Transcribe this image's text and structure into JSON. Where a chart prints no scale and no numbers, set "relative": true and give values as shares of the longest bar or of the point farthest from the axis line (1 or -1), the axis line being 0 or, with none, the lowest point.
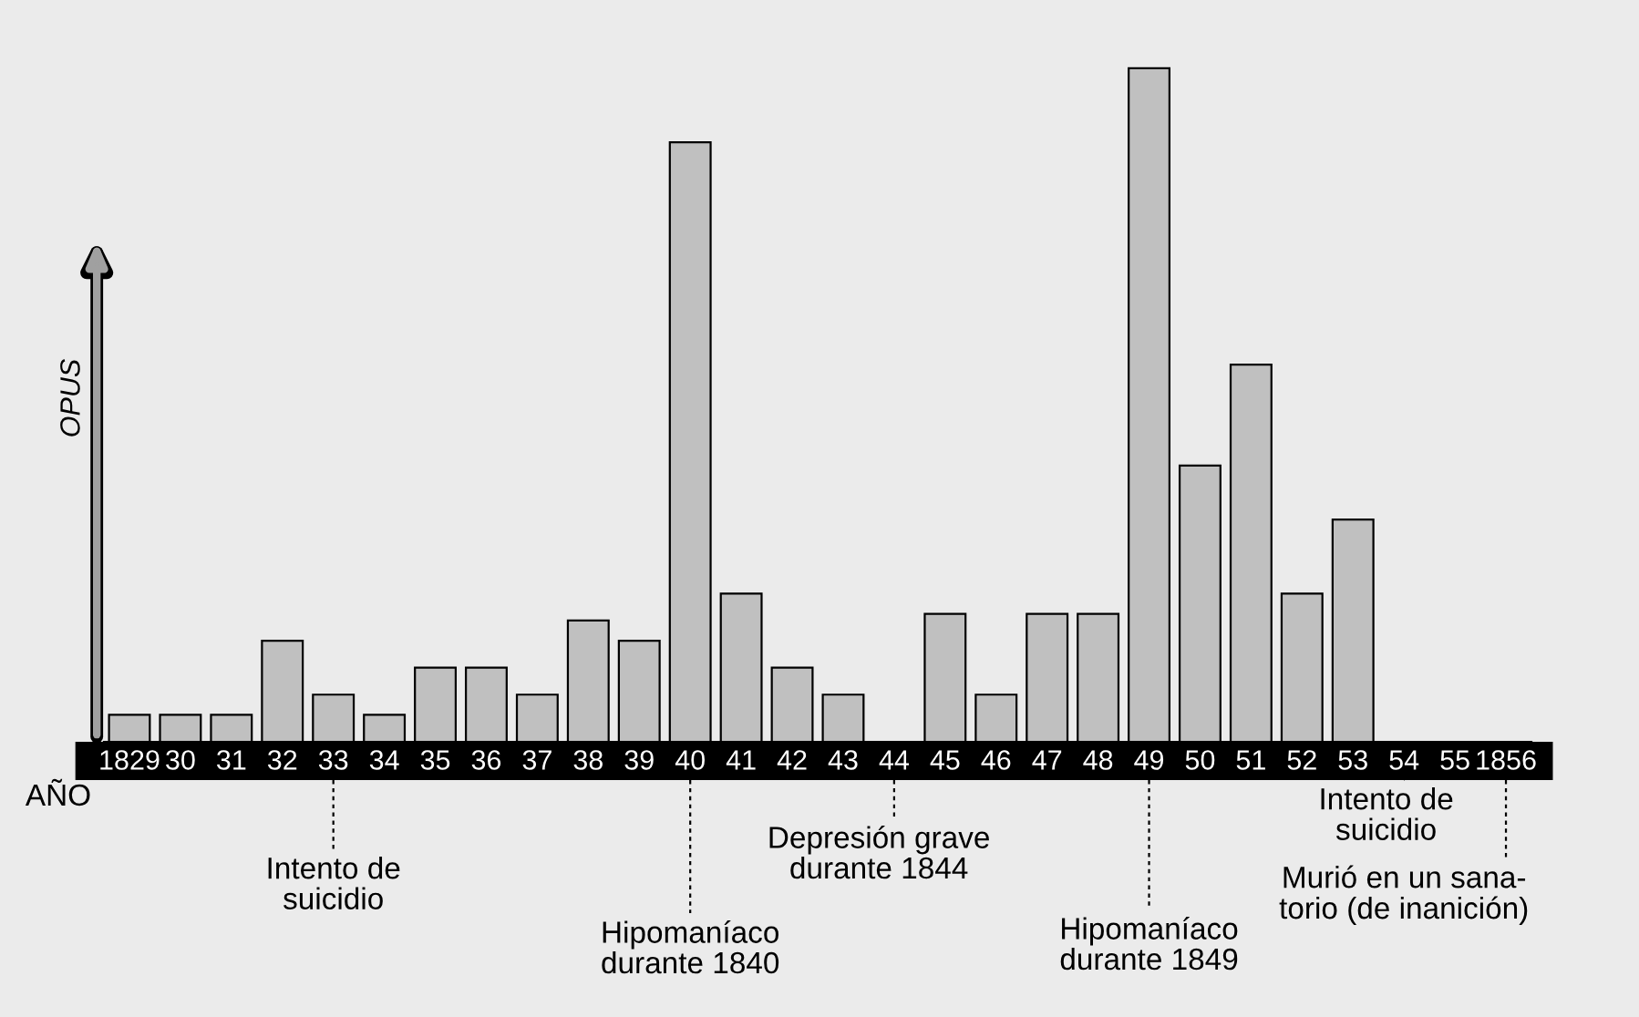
{
  "chart_data": {
    "type": "bar",
    "relative": true,
    "ylabel": "OPUS",
    "xlabel": "AÑO",
    "categories": [
      "1829",
      "30",
      "31",
      "32",
      "33",
      "34",
      "35",
      "36",
      "37",
      "38",
      "39",
      "40",
      "41",
      "42",
      "43",
      "44",
      "45",
      "46",
      "47",
      "48",
      "49",
      "50",
      "51",
      "52",
      "53",
      "54",
      "55",
      "1856"
    ],
    "values": [
      0.04,
      0.04,
      0.04,
      0.15,
      0.07,
      0.04,
      0.11,
      0.11,
      0.07,
      0.18,
      0.15,
      0.89,
      0.22,
      0.11,
      0.07,
      0,
      0.19,
      0.07,
      0.19,
      0.19,
      1,
      0.41,
      0.56,
      0.22,
      0.33,
      0,
      0,
      0
    ],
    "color": "#c0c0c0",
    "annotations": [
      "Intento de\nsuicidio",
      "Hipomaníaco\ndurante 1840",
      "Depresión grave\ndurante 1844",
      "Hipomaníaco\ndurante 1849",
      "Intento de\nsuicidio",
      "Murió en un sana-\ntorio (de inanición)"
    ],
    "grid": false,
    "legend": false
  }
}
